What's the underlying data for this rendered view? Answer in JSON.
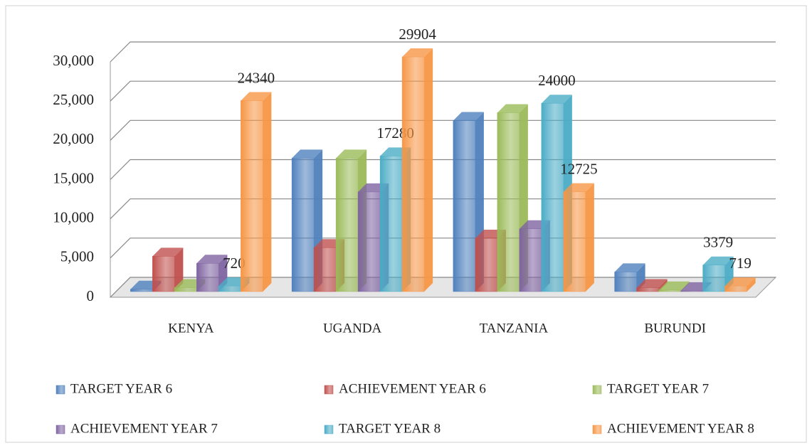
{
  "chart_data": {
    "type": "bar3d",
    "categories": [
      "KENYA",
      "UGANDA",
      "TANZANIA",
      "BURUNDI"
    ],
    "series": [
      {
        "name": "TARGET YEAR 6",
        "color": "#4f81bd",
        "values": [
          300,
          17000,
          21800,
          2500
        ],
        "value_labels": [
          null,
          null,
          null,
          null
        ]
      },
      {
        "name": "ACHIEVEMENT YEAR 6",
        "color": "#c0504d",
        "values": [
          4500,
          5600,
          6800,
          500
        ],
        "value_labels": [
          null,
          null,
          null,
          null
        ]
      },
      {
        "name": "TARGET YEAR 7",
        "color": "#9bbb59",
        "values": [
          500,
          17000,
          22800,
          200
        ],
        "value_labels": [
          null,
          null,
          null,
          null
        ]
      },
      {
        "name": "ACHIEVEMENT YEAR 7",
        "color": "#8064a2",
        "values": [
          3600,
          12700,
          8000,
          100
        ],
        "value_labels": [
          null,
          null,
          null,
          null
        ]
      },
      {
        "name": "TARGET YEAR 8",
        "color": "#4bacc6",
        "values": [
          720,
          17280,
          24000,
          3379
        ],
        "value_labels": [
          "720",
          "17280",
          "24000",
          "3379"
        ]
      },
      {
        "name": "ACHIEVEMENT YEAR 8",
        "color": "#f79646",
        "values": [
          24340,
          29904,
          12725,
          719
        ],
        "value_labels": [
          "24340",
          "29904",
          "12725",
          "719"
        ]
      }
    ],
    "ylim": [
      0,
      30000
    ],
    "yticks": [
      0,
      {
        "value": 5000,
        "label": "5,000"
      },
      {
        "value": 10000,
        "label": "10,000"
      },
      {
        "value": 15000,
        "label": "15,000"
      },
      {
        "value": 20000,
        "label": "20,000"
      },
      {
        "value": 25000,
        "label": "25,000"
      },
      {
        "value": 30000,
        "label": "30,000"
      }
    ],
    "grid": true,
    "legend": "bottom"
  }
}
